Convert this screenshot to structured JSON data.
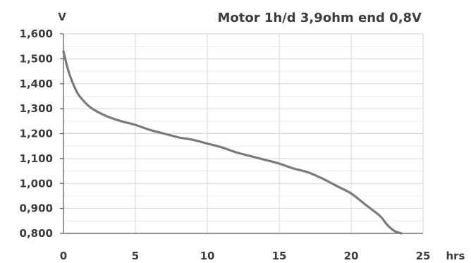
{
  "chart_data": {
    "type": "line",
    "title": "Motor 1h/d 3,9ohm end 0,8V",
    "ylabel": "V",
    "xlabel": "hrs",
    "xlim": [
      0,
      25
    ],
    "ylim": [
      0.8,
      1.6
    ],
    "x_ticks": [
      0,
      5,
      10,
      15,
      20,
      25
    ],
    "y_ticks": [
      0.8,
      0.9,
      1.0,
      1.1,
      1.2,
      1.3,
      1.4,
      1.5,
      1.6
    ],
    "x_tick_labels": [
      "0",
      "5",
      "10",
      "15",
      "20",
      "25"
    ],
    "y_tick_labels": [
      "0,800",
      "0,900",
      "1,000",
      "1,100",
      "1,200",
      "1,300",
      "1,400",
      "1,500",
      "1,600"
    ],
    "grid": true,
    "series": [
      {
        "color": "#7a7a7a",
        "x": [
          0,
          0.3,
          0.6,
          1.0,
          1.5,
          2.0,
          3.0,
          4.0,
          5.0,
          6.0,
          7.0,
          8.0,
          9.0,
          10.0,
          11.0,
          12.0,
          13.0,
          14.0,
          15.0,
          16.0,
          17.0,
          18.0,
          19.0,
          20.0,
          21.0,
          22.0,
          22.5,
          23.0,
          23.5
        ],
        "values": [
          1.53,
          1.46,
          1.41,
          1.36,
          1.325,
          1.3,
          1.27,
          1.25,
          1.235,
          1.215,
          1.2,
          1.185,
          1.175,
          1.16,
          1.145,
          1.125,
          1.11,
          1.095,
          1.08,
          1.06,
          1.045,
          1.02,
          0.99,
          0.96,
          0.915,
          0.87,
          0.835,
          0.81,
          0.8
        ]
      }
    ]
  }
}
